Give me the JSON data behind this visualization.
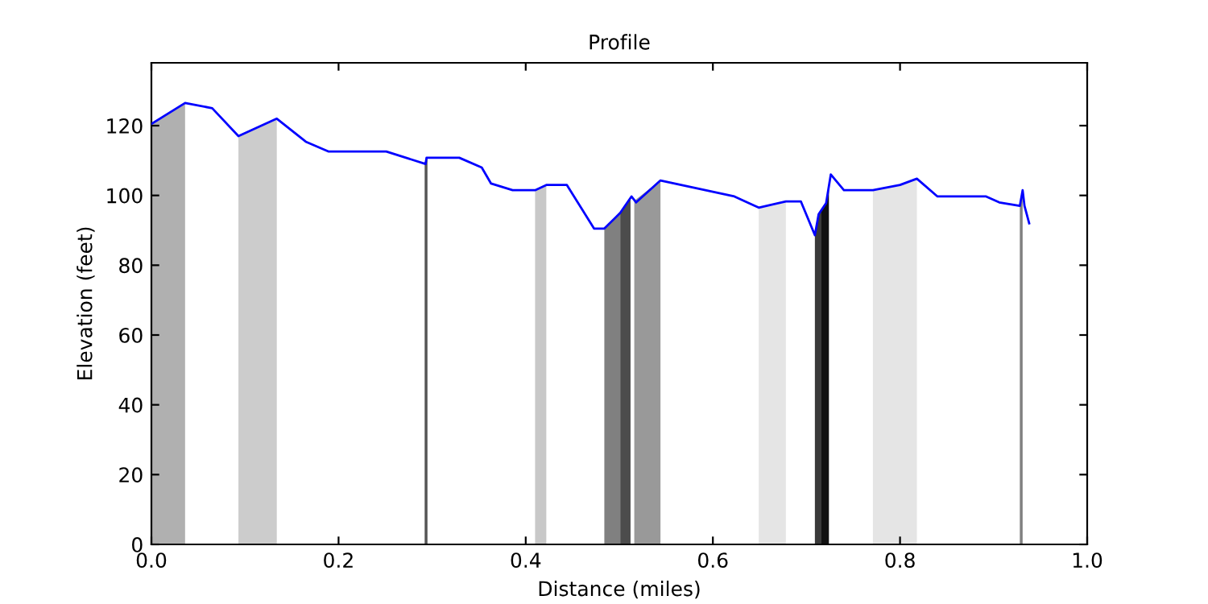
{
  "chart_data": {
    "type": "line",
    "title": "Profile",
    "xlabel": "Distance (miles)",
    "ylabel": "Elevation (feet)",
    "xlim": [
      0,
      1
    ],
    "ylim": [
      0,
      138
    ],
    "xticks": [
      {
        "value": 0,
        "label": "0.0"
      },
      0.2,
      0.4,
      0.6,
      0.8,
      {
        "value": 1,
        "label": "1.0"
      }
    ],
    "yticks": [
      0,
      20,
      40,
      60,
      80,
      100,
      120
    ],
    "grid": false,
    "legend": false,
    "series": [
      {
        "type": "area",
        "color": "#b0b0b0",
        "x": [
          0,
          0.036
        ],
        "values": [
          120.5,
          126.5
        ]
      },
      {
        "type": "area",
        "color": "#cccccc",
        "x": [
          0.093,
          0.134
        ],
        "values": [
          117,
          122
        ]
      },
      {
        "type": "area",
        "color": "#555555",
        "x": [
          0.292,
          0.295
        ],
        "values": [
          109.5,
          110.8
        ]
      },
      {
        "type": "area",
        "color": "#c8c8c8",
        "x": [
          0.41,
          0.422
        ],
        "values": [
          101.5,
          103
        ]
      },
      {
        "type": "area",
        "color": "#808080",
        "x": [
          0.484,
          0.501
        ],
        "values": [
          90.5,
          95
        ]
      },
      {
        "type": "area",
        "color": "#4c4c4c",
        "x": [
          0.501,
          0.512
        ],
        "values": [
          95,
          99.5
        ]
      },
      {
        "type": "area",
        "color": "#999999",
        "x": [
          0.516,
          0.544
        ],
        "values": [
          98.5,
          104.3
        ]
      },
      {
        "type": "area",
        "color": "#e5e5e5",
        "x": [
          0.649,
          0.678
        ],
        "values": [
          96.5,
          98.3
        ]
      },
      {
        "type": "area",
        "color": "#3a3a3a",
        "x": [
          0.709,
          0.713,
          0.716
        ],
        "values": [
          88.6,
          94.6,
          96
        ]
      },
      {
        "type": "area",
        "color": "#111111",
        "x": [
          0.716,
          0.721,
          0.724
        ],
        "values": [
          96,
          97.8,
          102.5
        ]
      },
      {
        "type": "area",
        "color": "#e5e5e5",
        "x": [
          0.771,
          0.8,
          0.818
        ],
        "values": [
          101.5,
          103,
          104.8
        ]
      },
      {
        "type": "area",
        "color": "#808080",
        "x": [
          0.928,
          0.931
        ],
        "values": [
          97,
          101.5
        ]
      },
      {
        "color": "#0000ff",
        "x": [
          0,
          0.036,
          0.065,
          0.093,
          0.134,
          0.165,
          0.189,
          0.251,
          0.293,
          0.294,
          0.329,
          0.353,
          0.363,
          0.386,
          0.41,
          0.422,
          0.444,
          0.473,
          0.484,
          0.501,
          0.513,
          0.518,
          0.544,
          0.623,
          0.649,
          0.678,
          0.694,
          0.709,
          0.713,
          0.721,
          0.726,
          0.74,
          0.771,
          0.8,
          0.818,
          0.84,
          0.892,
          0.906,
          0.928,
          0.931,
          0.933,
          0.938
        ],
        "values": [
          120.5,
          126.5,
          125,
          117,
          122,
          115.4,
          112.6,
          112.6,
          109,
          110.8,
          110.8,
          108,
          103.4,
          101.5,
          101.5,
          103,
          103,
          90.5,
          90.5,
          95,
          99.7,
          98,
          104.3,
          99.7,
          96.5,
          98.3,
          98.3,
          88.6,
          94.6,
          97.8,
          106,
          101.5,
          101.5,
          103,
          104.8,
          99.7,
          99.7,
          98,
          97,
          101.5,
          97,
          92
        ]
      }
    ]
  }
}
